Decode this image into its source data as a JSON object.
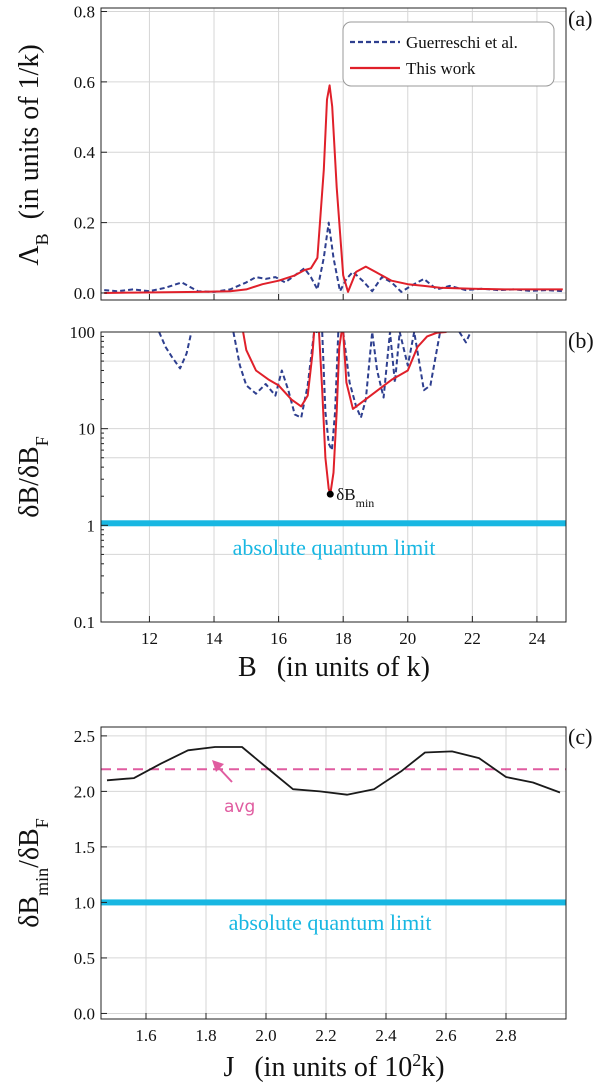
{
  "colors": {
    "guerreschi": "#2e3f8f",
    "this_work": "#e0202a",
    "quantum_limit": "#18b7e2",
    "avg": "#e05ca0",
    "curve_c": "#1a1a1a",
    "grid": "#d6d6d6"
  },
  "chart_data": [
    {
      "panel": "(a)",
      "type": "line",
      "xlim": [
        10.5,
        24.9
      ],
      "ylim": [
        -0.02,
        0.81
      ],
      "ylabel_main": "Λ",
      "ylabel_sub": "B",
      "ylabel_units": "(in units of 1/k)",
      "yticks": [
        "0.0",
        "0.2",
        "0.4",
        "0.6",
        "0.8"
      ],
      "ytick_values": [
        0.0,
        0.2,
        0.4,
        0.6,
        0.8
      ],
      "legend": {
        "placement": "top-right",
        "entries": [
          "Guerreschi et al.",
          "This work"
        ]
      },
      "series": [
        {
          "name": "Guerreschi et al.",
          "style": "dashed",
          "x": [
            10.6,
            11.0,
            11.5,
            12.0,
            12.5,
            13.0,
            13.5,
            14.0,
            14.5,
            15.0,
            15.3,
            15.6,
            15.9,
            16.2,
            16.5,
            16.8,
            17.0,
            17.2,
            17.4,
            17.55,
            17.7,
            17.9,
            18.1,
            18.3,
            18.6,
            18.9,
            19.2,
            19.5,
            19.8,
            20.1,
            20.5,
            20.9,
            21.3,
            21.8,
            22.3,
            22.8,
            23.3,
            23.8,
            24.3,
            24.8
          ],
          "y": [
            0.008,
            0.005,
            0.01,
            0.005,
            0.015,
            0.03,
            0.005,
            0.003,
            0.01,
            0.03,
            0.045,
            0.04,
            0.045,
            0.03,
            0.05,
            0.07,
            0.045,
            0.01,
            0.1,
            0.2,
            0.1,
            0.005,
            0.04,
            0.06,
            0.035,
            0.005,
            0.045,
            0.03,
            0.003,
            0.02,
            0.04,
            0.01,
            0.02,
            0.008,
            0.012,
            0.008,
            0.01,
            0.006,
            0.008,
            0.005
          ]
        },
        {
          "name": "This work",
          "style": "solid",
          "x": [
            10.6,
            11.5,
            12.5,
            13.5,
            14.5,
            15.0,
            15.5,
            16.0,
            16.5,
            16.8,
            17.0,
            17.2,
            17.4,
            17.5,
            17.58,
            17.66,
            17.8,
            18.0,
            18.15,
            18.4,
            18.7,
            19.0,
            19.5,
            20.0,
            20.5,
            21.0,
            22.0,
            23.0,
            24.0,
            24.8
          ],
          "y": [
            0.0,
            0.001,
            0.002,
            0.003,
            0.005,
            0.01,
            0.025,
            0.035,
            0.05,
            0.065,
            0.07,
            0.1,
            0.35,
            0.55,
            0.59,
            0.53,
            0.3,
            0.05,
            0.003,
            0.06,
            0.075,
            0.06,
            0.035,
            0.025,
            0.02,
            0.015,
            0.012,
            0.01,
            0.01,
            0.01
          ]
        }
      ]
    },
    {
      "panel": "(b)",
      "type": "line",
      "yscale": "log",
      "xlim": [
        10.5,
        24.9
      ],
      "ylim": [
        0.1,
        100
      ],
      "ylabel_main": "δB/δB",
      "ylabel_sub": "F",
      "xlabel_main": "B",
      "xlabel_units": "(in units of k)",
      "xticks": [
        "12",
        "14",
        "16",
        "18",
        "20",
        "22",
        "24"
      ],
      "xtick_values": [
        12,
        14,
        16,
        18,
        20,
        22,
        24
      ],
      "yticks": [
        "0.1",
        "1",
        "10",
        "100"
      ],
      "ytick_values": [
        0.1,
        1,
        10,
        100
      ],
      "quantum_limit": 1.05,
      "quantum_limit_label": "absolute quantum limit",
      "marker": {
        "x": 17.6,
        "y": 2.1,
        "label_main": "δB",
        "label_sub": "min"
      },
      "series": [
        {
          "name": "Guerreschi et al.",
          "style": "dashed",
          "segments": [
            {
              "x": [
                12.3,
                12.5,
                12.7,
                12.95,
                13.15,
                13.3
              ],
              "y": [
                100,
                70,
                55,
                42,
                60,
                100
              ]
            },
            {
              "x": [
                14.6,
                14.8,
                15.0,
                15.3,
                15.6,
                15.9,
                16.1,
                16.3,
                16.5,
                16.7,
                16.9,
                17.1,
                17.2
              ],
              "y": [
                100,
                45,
                28,
                23,
                29,
                22,
                40,
                25,
                14,
                13,
                28,
                100,
                100
              ]
            },
            {
              "x": [
                17.35,
                17.45,
                17.55,
                17.65,
                17.75,
                17.85
              ],
              "y": [
                100,
                15,
                7,
                6,
                15,
                100
              ]
            },
            {
              "x": [
                18.0,
                18.2,
                18.4,
                18.55,
                18.7,
                18.9,
                19.05,
                19.25,
                19.45,
                19.6,
                19.75,
                20.0,
                20.2,
                20.5,
                20.7,
                21.0,
                21.2
              ],
              "y": [
                100,
                30,
                17,
                13,
                20,
                100,
                40,
                21,
                100,
                30,
                100,
                45,
                100,
                25,
                28,
                100,
                100
              ]
            },
            {
              "x": [
                21.6,
                21.8,
                21.95
              ],
              "y": [
                100,
                78,
                100
              ]
            }
          ]
        },
        {
          "name": "This work",
          "style": "solid",
          "segments": [
            {
              "x": [
                14.9,
                15.0,
                15.3,
                15.7,
                16.0,
                16.4,
                16.7,
                16.9,
                17.05,
                17.1
              ],
              "y": [
                100,
                65,
                40,
                32,
                28,
                20,
                17,
                22,
                60,
                100
              ]
            },
            {
              "x": [
                17.25,
                17.35,
                17.45,
                17.55,
                17.6,
                17.7,
                17.8,
                17.88,
                17.95
              ],
              "y": [
                100,
                25,
                5,
                2.4,
                2.1,
                3.5,
                15,
                70,
                100
              ]
            },
            {
              "x": [
                18.0,
                18.1,
                18.3,
                18.6,
                19.0,
                19.5,
                20.0,
                20.3,
                20.6,
                20.9,
                21.2
              ],
              "y": [
                100,
                30,
                16,
                19,
                24,
                32,
                40,
                70,
                90,
                98,
                100
              ]
            }
          ]
        }
      ]
    },
    {
      "panel": "(c)",
      "type": "line",
      "xlim": [
        1.45,
        3.0
      ],
      "ylim": [
        -0.05,
        2.58
      ],
      "ylabel_main": "δB",
      "ylabel_sub1": "min",
      "ylabel_mid": "/δB",
      "ylabel_sub2": "F",
      "xlabel_main": "J",
      "xlabel_units_pre": "(in units of 10",
      "xlabel_units_sup": "2",
      "xlabel_units_post": "k)",
      "xticks": [
        "1.6",
        "1.8",
        "2.0",
        "2.2",
        "2.4",
        "2.6",
        "2.8"
      ],
      "xtick_values": [
        1.6,
        1.8,
        2.0,
        2.2,
        2.4,
        2.6,
        2.8
      ],
      "yticks": [
        "0.0",
        "0.5",
        "1.0",
        "1.5",
        "2.0",
        "2.5"
      ],
      "ytick_values": [
        0.0,
        0.5,
        1.0,
        1.5,
        2.0,
        2.5
      ],
      "avg_value": 2.2,
      "avg_label": "avg",
      "quantum_limit": 1.0,
      "quantum_limit_label": "absolute quantum limit",
      "series": [
        {
          "name": "",
          "x": [
            1.47,
            1.56,
            1.65,
            1.74,
            1.83,
            1.92,
            2.0,
            2.09,
            2.18,
            2.27,
            2.36,
            2.45,
            2.53,
            2.62,
            2.71,
            2.8,
            2.89,
            2.98
          ],
          "y": [
            2.1,
            2.12,
            2.25,
            2.37,
            2.4,
            2.4,
            2.22,
            2.02,
            2.0,
            1.97,
            2.02,
            2.18,
            2.35,
            2.36,
            2.3,
            2.13,
            2.08,
            1.99
          ]
        }
      ]
    }
  ]
}
